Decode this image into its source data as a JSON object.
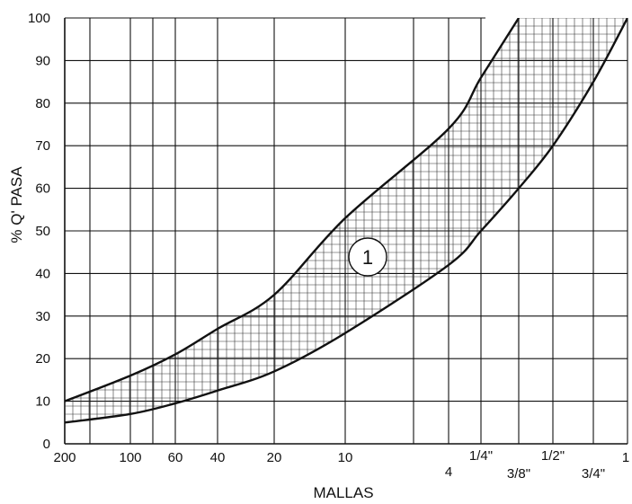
{
  "chart_data": {
    "type": "area",
    "title": "",
    "xlabel": "MALLAS",
    "ylabel": "% Q' PASA",
    "ylim": [
      0,
      100
    ],
    "grid": true,
    "y_ticks": [
      "0",
      "10",
      "20",
      "30",
      "40",
      "50",
      "60",
      "70",
      "80",
      "90",
      "100"
    ],
    "x_ticks": [
      "200",
      "100",
      "60",
      "40",
      "20",
      "10",
      "4",
      "1/4\"",
      "3/8\"",
      "1/2\"",
      "3/4\"",
      "1"
    ],
    "band_label": "1",
    "series": [
      {
        "role": "upper",
        "points": [
          [
            "200",
            10
          ],
          [
            "100",
            16
          ],
          [
            "60",
            21
          ],
          [
            "40",
            27
          ],
          [
            "20",
            35
          ],
          [
            "10",
            53
          ],
          [
            "4",
            74
          ],
          [
            "1/4\"",
            86
          ],
          [
            "3/8\"",
            100
          ]
        ]
      },
      {
        "role": "lower",
        "points": [
          [
            "200",
            5
          ],
          [
            "100",
            7
          ],
          [
            "60",
            9.5
          ],
          [
            "40",
            12.5
          ],
          [
            "20",
            17
          ],
          [
            "10",
            26
          ],
          [
            "4",
            42
          ],
          [
            "1/4\"",
            50
          ],
          [
            "3/8\"",
            60
          ],
          [
            "1/2\"",
            70
          ],
          [
            "3/4\"",
            85
          ],
          [
            "1",
            100
          ]
        ]
      }
    ],
    "colors": {
      "lines": "#111111",
      "hatch": "#333333",
      "grid": "#111111"
    }
  }
}
